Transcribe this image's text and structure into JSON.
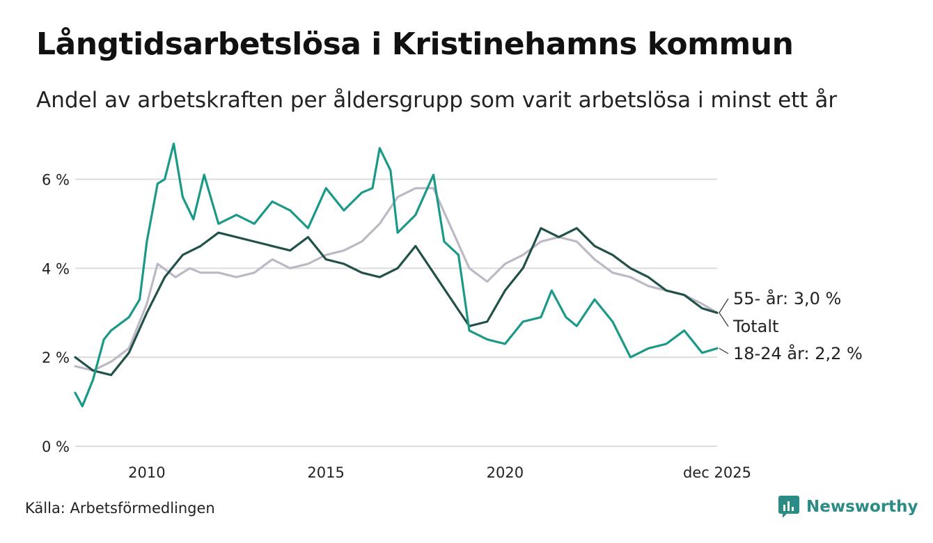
{
  "header": {
    "title": "Långtidsarbetslösa i Kristinehamns kommun",
    "subtitle": "Andel av arbetskraften per åldersgrupp som varit arbetslösa i minst ett år"
  },
  "footer": {
    "source": "Källa: Arbetsförmedlingen",
    "brand": "Newsworthy"
  },
  "colors": {
    "young": "#1a9987",
    "total": "#22514a",
    "old": "#bdb8c6",
    "grid": "#dcdcdc",
    "brand": "#2a8c84"
  },
  "chart_data": {
    "type": "line",
    "title": "Långtidsarbetslösa i Kristinehamns kommun",
    "subtitle": "Andel av arbetskraften per åldersgrupp som varit arbetslösa i minst ett år",
    "xlabel": "",
    "ylabel": "",
    "xlim": [
      2008.0,
      2025.92
    ],
    "ylim": [
      0,
      7
    ],
    "y_ticks": [
      {
        "value": 0,
        "label": "0 %"
      },
      {
        "value": 2,
        "label": "2 %"
      },
      {
        "value": 4,
        "label": "4 %"
      },
      {
        "value": 6,
        "label": "6 %"
      }
    ],
    "x_ticks": [
      {
        "value": 2010,
        "label": "2010"
      },
      {
        "value": 2015,
        "label": "2015"
      },
      {
        "value": 2020,
        "label": "2020"
      },
      {
        "value": 2025.92,
        "label": "dec 2025"
      }
    ],
    "grid": true,
    "series": [
      {
        "name": "55- år",
        "color": "#bdb8c6",
        "end_label": "55- år: 3,0 %",
        "points": [
          [
            2008.0,
            1.8
          ],
          [
            2008.5,
            1.7
          ],
          [
            2009.0,
            1.9
          ],
          [
            2009.5,
            2.2
          ],
          [
            2010.0,
            3.2
          ],
          [
            2010.3,
            4.1
          ],
          [
            2010.8,
            3.8
          ],
          [
            2011.2,
            4.0
          ],
          [
            2011.5,
            3.9
          ],
          [
            2012.0,
            3.9
          ],
          [
            2012.5,
            3.8
          ],
          [
            2013.0,
            3.9
          ],
          [
            2013.5,
            4.2
          ],
          [
            2014.0,
            4.0
          ],
          [
            2014.5,
            4.1
          ],
          [
            2015.0,
            4.3
          ],
          [
            2015.5,
            4.4
          ],
          [
            2016.0,
            4.6
          ],
          [
            2016.5,
            5.0
          ],
          [
            2017.0,
            5.6
          ],
          [
            2017.5,
            5.8
          ],
          [
            2018.0,
            5.8
          ],
          [
            2018.5,
            4.9
          ],
          [
            2019.0,
            4.0
          ],
          [
            2019.5,
            3.7
          ],
          [
            2020.0,
            4.1
          ],
          [
            2020.5,
            4.3
          ],
          [
            2021.0,
            4.6
          ],
          [
            2021.5,
            4.7
          ],
          [
            2022.0,
            4.6
          ],
          [
            2022.5,
            4.2
          ],
          [
            2023.0,
            3.9
          ],
          [
            2023.5,
            3.8
          ],
          [
            2024.0,
            3.6
          ],
          [
            2024.5,
            3.5
          ],
          [
            2025.0,
            3.4
          ],
          [
            2025.5,
            3.2
          ],
          [
            2025.92,
            3.0
          ]
        ]
      },
      {
        "name": "Totalt",
        "color": "#22514a",
        "end_label": "Totalt",
        "points": [
          [
            2008.0,
            2.0
          ],
          [
            2008.5,
            1.7
          ],
          [
            2009.0,
            1.6
          ],
          [
            2009.5,
            2.1
          ],
          [
            2010.0,
            3.0
          ],
          [
            2010.5,
            3.8
          ],
          [
            2011.0,
            4.3
          ],
          [
            2011.5,
            4.5
          ],
          [
            2012.0,
            4.8
          ],
          [
            2012.5,
            4.7
          ],
          [
            2013.0,
            4.6
          ],
          [
            2013.5,
            4.5
          ],
          [
            2014.0,
            4.4
          ],
          [
            2014.5,
            4.7
          ],
          [
            2015.0,
            4.2
          ],
          [
            2015.5,
            4.1
          ],
          [
            2016.0,
            3.9
          ],
          [
            2016.5,
            3.8
          ],
          [
            2017.0,
            4.0
          ],
          [
            2017.5,
            4.5
          ],
          [
            2018.0,
            3.9
          ],
          [
            2018.5,
            3.3
          ],
          [
            2019.0,
            2.7
          ],
          [
            2019.5,
            2.8
          ],
          [
            2020.0,
            3.5
          ],
          [
            2020.5,
            4.0
          ],
          [
            2021.0,
            4.9
          ],
          [
            2021.5,
            4.7
          ],
          [
            2022.0,
            4.9
          ],
          [
            2022.5,
            4.5
          ],
          [
            2023.0,
            4.3
          ],
          [
            2023.5,
            4.0
          ],
          [
            2024.0,
            3.8
          ],
          [
            2024.5,
            3.5
          ],
          [
            2025.0,
            3.4
          ],
          [
            2025.5,
            3.1
          ],
          [
            2025.92,
            3.0
          ]
        ]
      },
      {
        "name": "18-24 år",
        "color": "#1a9987",
        "end_label": "18-24 år: 2,2 %",
        "points": [
          [
            2008.0,
            1.2
          ],
          [
            2008.2,
            0.9
          ],
          [
            2008.5,
            1.5
          ],
          [
            2008.8,
            2.4
          ],
          [
            2009.0,
            2.6
          ],
          [
            2009.5,
            2.9
          ],
          [
            2009.8,
            3.3
          ],
          [
            2010.0,
            4.6
          ],
          [
            2010.3,
            5.9
          ],
          [
            2010.5,
            6.0
          ],
          [
            2010.75,
            6.8
          ],
          [
            2011.0,
            5.6
          ],
          [
            2011.3,
            5.1
          ],
          [
            2011.6,
            6.1
          ],
          [
            2012.0,
            5.0
          ],
          [
            2012.5,
            5.2
          ],
          [
            2013.0,
            5.0
          ],
          [
            2013.5,
            5.5
          ],
          [
            2014.0,
            5.3
          ],
          [
            2014.5,
            4.9
          ],
          [
            2015.0,
            5.8
          ],
          [
            2015.5,
            5.3
          ],
          [
            2016.0,
            5.7
          ],
          [
            2016.3,
            5.8
          ],
          [
            2016.5,
            6.7
          ],
          [
            2016.8,
            6.2
          ],
          [
            2017.0,
            4.8
          ],
          [
            2017.5,
            5.2
          ],
          [
            2018.0,
            6.1
          ],
          [
            2018.3,
            4.6
          ],
          [
            2018.7,
            4.3
          ],
          [
            2019.0,
            2.6
          ],
          [
            2019.5,
            2.4
          ],
          [
            2020.0,
            2.3
          ],
          [
            2020.5,
            2.8
          ],
          [
            2021.0,
            2.9
          ],
          [
            2021.3,
            3.5
          ],
          [
            2021.7,
            2.9
          ],
          [
            2022.0,
            2.7
          ],
          [
            2022.5,
            3.3
          ],
          [
            2023.0,
            2.8
          ],
          [
            2023.5,
            2.0
          ],
          [
            2024.0,
            2.2
          ],
          [
            2024.5,
            2.3
          ],
          [
            2025.0,
            2.6
          ],
          [
            2025.5,
            2.1
          ],
          [
            2025.92,
            2.2
          ]
        ]
      }
    ]
  }
}
